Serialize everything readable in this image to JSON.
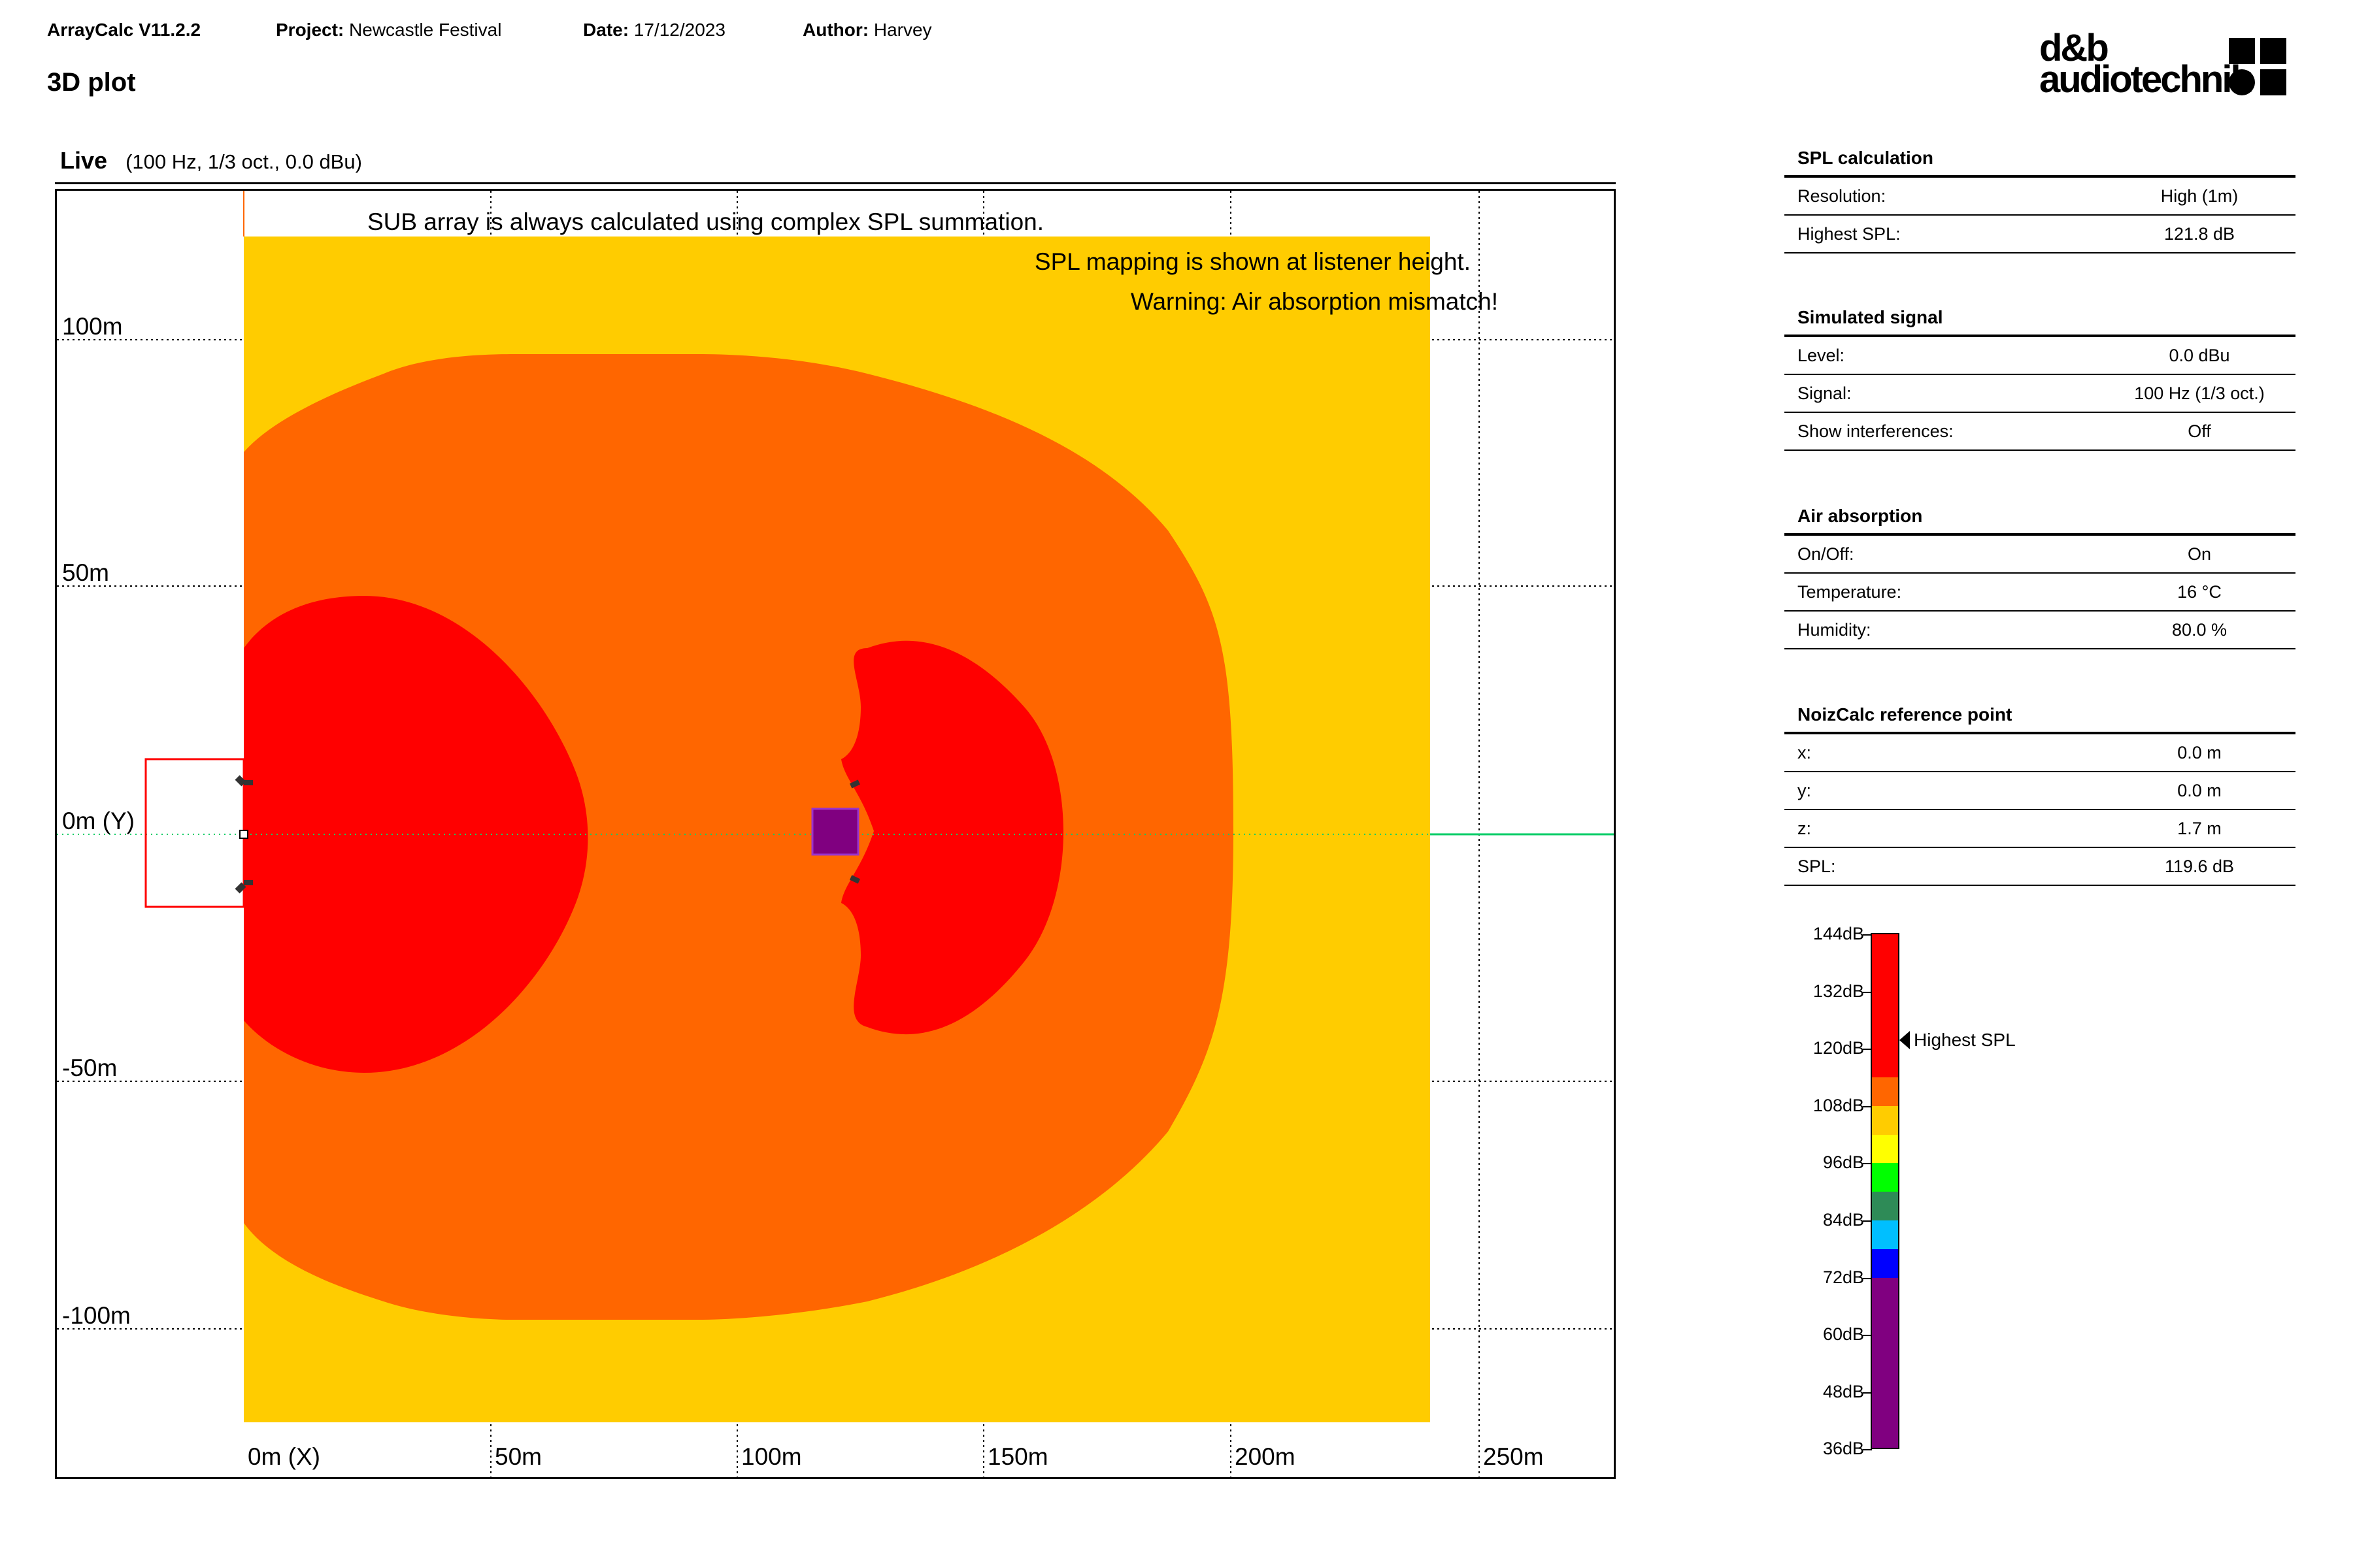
{
  "header": {
    "app": "ArrayCalc V11.2.2",
    "project_label": "Project:",
    "project": "Newcastle Festival",
    "date_label": "Date:",
    "date": "17/12/2023",
    "author_label": "Author:",
    "author": "Harvey",
    "page_title": "3D plot",
    "logo_line1": "d&b",
    "logo_line2": "audiotechnik"
  },
  "plot": {
    "mode": "Live",
    "params": "(100 Hz, 1/3 oct., 0.0 dBu)",
    "notes": [
      "SUB array is always calculated using complex SPL summation.",
      "SPL mapping is shown at listener height.",
      "Warning: Air absorption mismatch!"
    ],
    "y_labels": [
      "100m",
      "50m",
      "0m (Y)",
      "-50m",
      "-100m"
    ],
    "x_labels": [
      "0m (X)",
      "50m",
      "100m",
      "150m",
      "200m",
      "250m"
    ],
    "colors": {
      "yellow_zone": "#ffcc00",
      "orange_zone": "#ff6600",
      "red_zone": "#ff0000",
      "stage_marker": "#800080",
      "axis_x": "#00cc66"
    }
  },
  "panel": {
    "sections": [
      {
        "title": "SPL calculation",
        "rows": [
          {
            "k": "Resolution:",
            "v": "High (1m)"
          },
          {
            "k": "Highest SPL:",
            "v": "121.8 dB"
          }
        ]
      },
      {
        "title": "Simulated signal",
        "rows": [
          {
            "k": "Level:",
            "v": "0.0 dBu"
          },
          {
            "k": "Signal:",
            "v": "100 Hz (1/3 oct.)"
          },
          {
            "k": "Show interferences:",
            "v": "Off"
          }
        ]
      },
      {
        "title": "Air absorption",
        "rows": [
          {
            "k": "On/Off:",
            "v": "On"
          },
          {
            "k": "Temperature:",
            "v": "16 °C"
          },
          {
            "k": "Humidity:",
            "v": "80.0 %"
          }
        ]
      },
      {
        "title": "NoizCalc reference point",
        "rows": [
          {
            "k": "x:",
            "v": "0.0 m"
          },
          {
            "k": "y:",
            "v": "0.0 m"
          },
          {
            "k": "z:",
            "v": "1.7 m"
          },
          {
            "k": "SPL:",
            "v": "119.6 dB"
          }
        ]
      }
    ]
  },
  "colorbar": {
    "labels": [
      "144dB",
      "132dB",
      "120dB",
      "108dB",
      "96dB",
      "84dB",
      "72dB",
      "60dB",
      "48dB",
      "36dB"
    ],
    "highest_label": "Highest SPL",
    "highest_value_db": 121.8,
    "colors": [
      "#ff0000",
      "#ff6600",
      "#ffcc00",
      "#ffff00",
      "#00ff00",
      "#2e8b57",
      "#00bfff",
      "#0000ff",
      "#800080"
    ]
  }
}
